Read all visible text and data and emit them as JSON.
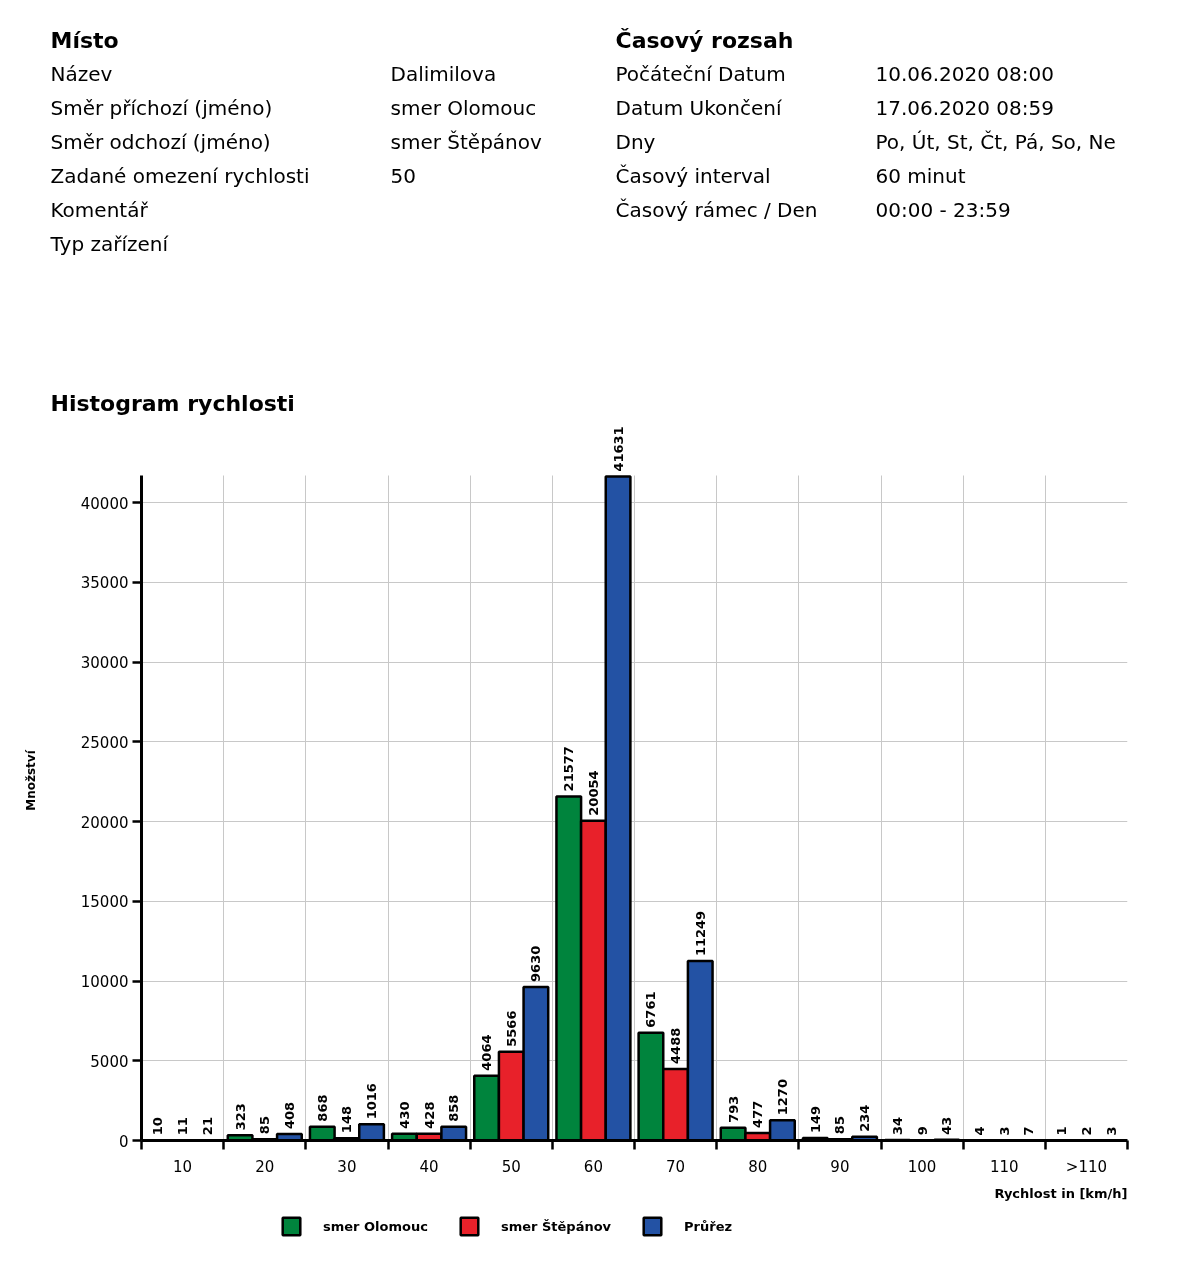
{
  "chart_data": [
    {
      "type": "other",
      "title": "Místo",
      "categories": [
        "Název",
        "Směr příchozí (jméno)",
        "Směr odchozí (jméno)",
        "Zadané omezení rychlosti",
        "Komentář",
        "Typ zařízení"
      ],
      "value_labels": [
        "Dalimilova",
        "smer Olomouc",
        "smer Štěpánov",
        "50",
        null,
        null
      ]
    },
    {
      "type": "other",
      "title": "Časový rozsah",
      "categories": [
        "Počáteční Datum",
        "Datum Ukončení",
        "Dny",
        "Časový interval",
        "Časový rámec / Den"
      ],
      "value_labels": [
        "10.06.2020 08:00",
        "17.06.2020 08:59",
        "Po, Út, St, Čt, Pá, So, Ne",
        "60 minut",
        "00:00 - 23:59"
      ]
    },
    {
      "type": "bar",
      "title": "Histogram rychlosti",
      "xlabel": "Rychlost in [km/h]",
      "ylabel": "Množství",
      "categories": [
        "10",
        "20",
        "30",
        "40",
        "50",
        "60",
        "70",
        "80",
        "90",
        "100",
        "110",
        ">110"
      ],
      "series": [
        {
          "name": "smer Olomouc",
          "color": "#00843d",
          "values": [
            10,
            323,
            868,
            430,
            4064,
            21577,
            6761,
            793,
            149,
            34,
            4,
            1
          ]
        },
        {
          "name": "smer Štěpánov",
          "color": "#e8212a",
          "values": [
            11,
            85,
            148,
            428,
            5566,
            20054,
            4488,
            477,
            85,
            9,
            3,
            2
          ]
        },
        {
          "name": "Průřez",
          "color": "#2352a4",
          "values": [
            21,
            408,
            1016,
            858,
            9630,
            41631,
            11249,
            1270,
            234,
            43,
            7,
            3
          ]
        }
      ],
      "ylim": [
        0,
        41700
      ],
      "yticks": [
        0,
        5000,
        10000,
        15000,
        20000,
        25000,
        30000,
        35000,
        40000
      ],
      "grid": true,
      "legend": "bottom",
      "data_labels": true
    }
  ]
}
